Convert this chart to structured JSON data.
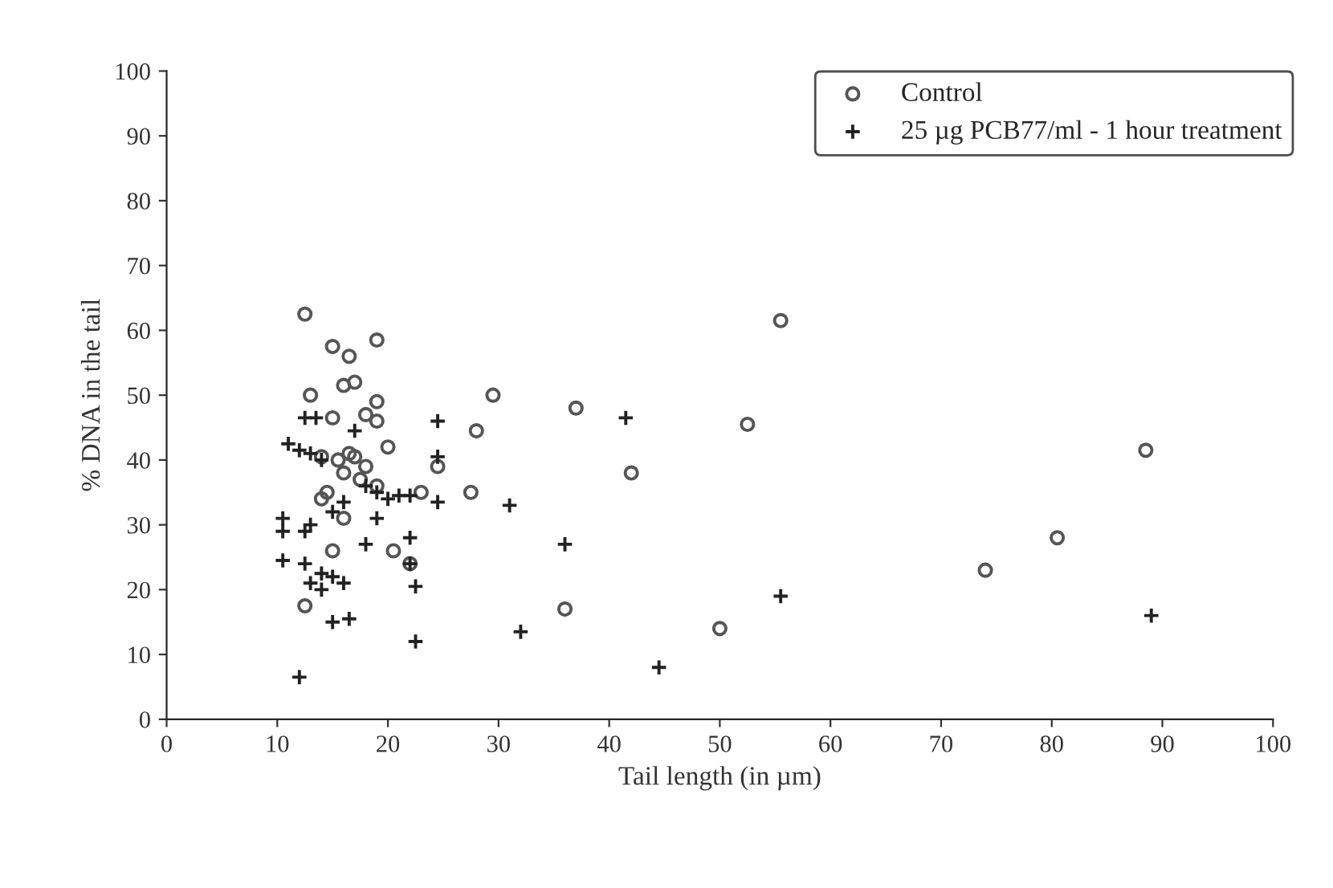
{
  "chart_data": {
    "type": "scatter",
    "xlabel": "Tail length (in µm)",
    "ylabel": "% DNA in the tail",
    "xlim": [
      0,
      100
    ],
    "xticks": [
      0,
      10,
      20,
      30,
      40,
      50,
      60,
      70,
      80,
      90,
      100
    ],
    "ylim": [
      0,
      100
    ],
    "yticks": [
      0,
      10,
      20,
      30,
      40,
      50,
      60,
      70,
      80,
      90,
      100
    ],
    "grid": false,
    "legend": "top right",
    "series": [
      {
        "name": "Control",
        "color": "#555555",
        "marker": "circle",
        "x": [
          12.5,
          15,
          16.5,
          19,
          13,
          16,
          17,
          19,
          19,
          15,
          18,
          14,
          15.5,
          16.5,
          17,
          18,
          16,
          17.5,
          19,
          20,
          14,
          14.5,
          16,
          20.5,
          22,
          15,
          12.5,
          23,
          24.5,
          27.5,
          28,
          29.5,
          37,
          42,
          52.5,
          55.5,
          36,
          50,
          74,
          80.5,
          88.5
        ],
        "values": [
          62.5,
          57.5,
          56,
          58.5,
          50,
          51.5,
          52,
          49,
          46,
          46.5,
          47,
          40.5,
          40,
          41,
          40.5,
          39,
          38,
          37,
          36,
          42,
          34,
          35,
          31,
          26,
          24,
          26,
          17.5,
          35,
          39,
          35,
          44.5,
          50,
          48,
          38,
          45.5,
          61.5,
          17,
          14,
          23,
          28,
          41.5
        ]
      },
      {
        "name": "25 µg PCB77/ml - 1 hour treatment",
        "color": "#222222",
        "marker": "cross",
        "x": [
          11,
          12,
          12.5,
          13.5,
          13,
          14,
          13,
          10.5,
          10.5,
          12.5,
          10.5,
          12.5,
          14,
          15,
          13,
          14,
          16,
          17,
          15,
          16,
          18,
          19,
          20,
          21,
          22,
          24.5,
          24.5,
          24.5,
          18,
          22,
          22,
          22.5,
          15,
          16.5,
          12,
          22.5,
          31,
          32,
          36,
          41.5,
          44.5,
          55.5,
          89,
          19
        ],
        "values": [
          42.5,
          41.5,
          46.5,
          46.5,
          41,
          40,
          30,
          31,
          29,
          29,
          24.5,
          24,
          22.5,
          22,
          21,
          20,
          21,
          44.5,
          32,
          33.5,
          36,
          35,
          34,
          34.5,
          34.5,
          33.5,
          40.5,
          46,
          27,
          28,
          24,
          20.5,
          15,
          15.5,
          6.5,
          12,
          33,
          13.5,
          27,
          46.5,
          8,
          19,
          16,
          31
        ]
      }
    ]
  }
}
